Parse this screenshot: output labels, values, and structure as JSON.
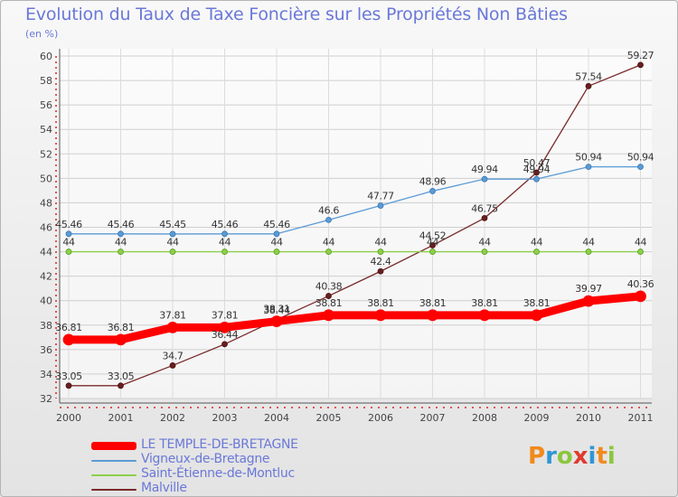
{
  "title": "Evolution du Taux de Taxe Foncière sur les Propriétés Non Bâties",
  "unit_label": "(en %)",
  "logo": {
    "text": "ProXiti",
    "letters": [
      "P",
      "r",
      "o",
      "x",
      "i",
      "t",
      "i"
    ],
    "colors": [
      "#f08a1c",
      "#2e96d6",
      "#8cc63e",
      "#e03a2f",
      "#2e96d6",
      "#f08a1c",
      "#8cc63e"
    ]
  },
  "chart_data": {
    "type": "line",
    "x": [
      "2000",
      "2001",
      "2002",
      "2003",
      "2004",
      "2005",
      "2006",
      "2007",
      "2008",
      "2009",
      "2010",
      "2011"
    ],
    "ylim": [
      32,
      60
    ],
    "yticks": [
      "32",
      "34",
      "36",
      "38",
      "40",
      "42",
      "44",
      "46",
      "48",
      "50",
      "52",
      "54",
      "56",
      "58",
      "60"
    ],
    "grid": true,
    "legend_position": "bottom",
    "series": [
      {
        "name": "LE TEMPLE-DE-BRETAGNE",
        "color": "#ff0000",
        "values": [
          36.81,
          36.81,
          37.81,
          37.81,
          38.31,
          38.81,
          38.81,
          38.81,
          38.81,
          38.81,
          39.97,
          40.36
        ],
        "labels": [
          "36.81",
          "36.81",
          "37.81",
          "37.81",
          "38.31",
          "38.81",
          "38.81",
          "38.81",
          "38.81",
          "38.81",
          "39.97",
          "40.36"
        ]
      },
      {
        "name": "Vigneux-de-Bretagne",
        "color": "#5b9bd5",
        "values": [
          45.46,
          45.46,
          45.45,
          45.46,
          45.46,
          46.6,
          47.77,
          48.96,
          49.94,
          49.94,
          50.94,
          50.94
        ],
        "labels": [
          "45.46",
          "45.46",
          "45.45",
          "45.46",
          "45.46",
          "46.6",
          "47.77",
          "48.96",
          "49.94",
          "49.94",
          "50.94",
          "50.94"
        ]
      },
      {
        "name": "Saint-Étienne-de-Montluc",
        "color": "#8cd04a",
        "values": [
          44,
          44,
          44,
          44,
          44,
          44,
          44,
          44,
          44,
          44,
          44,
          44
        ],
        "labels": [
          "44",
          "44",
          "44",
          "44",
          "44",
          "44",
          "44",
          "44",
          "44",
          "44",
          "44",
          "44"
        ]
      },
      {
        "name": "Malville",
        "color": "#7a2a2a",
        "values": [
          33.05,
          33.05,
          34.7,
          36.44,
          38.44,
          40.38,
          42.4,
          44.52,
          46.75,
          50.47,
          57.54,
          59.27
        ],
        "labels": [
          "33.05",
          "33.05",
          "34.7",
          "36.44",
          "38.44",
          "40.38",
          "42.4",
          "44.52",
          "46.75",
          "50.47",
          "57.54",
          "59.27"
        ]
      }
    ]
  }
}
